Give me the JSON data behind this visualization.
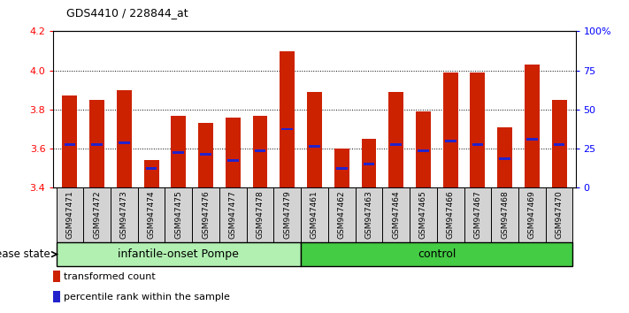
{
  "title": "GDS4410 / 228844_at",
  "samples": [
    "GSM947471",
    "GSM947472",
    "GSM947473",
    "GSM947474",
    "GSM947475",
    "GSM947476",
    "GSM947477",
    "GSM947478",
    "GSM947479",
    "GSM947461",
    "GSM947462",
    "GSM947463",
    "GSM947464",
    "GSM947465",
    "GSM947466",
    "GSM947467",
    "GSM947468",
    "GSM947469",
    "GSM947470"
  ],
  "bar_values": [
    3.87,
    3.85,
    3.9,
    3.54,
    3.77,
    3.73,
    3.76,
    3.77,
    4.1,
    3.89,
    3.6,
    3.65,
    3.89,
    3.79,
    3.99,
    3.99,
    3.71,
    4.03,
    3.85
  ],
  "blue_positions": [
    3.62,
    3.62,
    3.63,
    3.5,
    3.58,
    3.57,
    3.54,
    3.59,
    3.7,
    3.61,
    3.5,
    3.52,
    3.62,
    3.59,
    3.64,
    3.62,
    3.55,
    3.65,
    3.62
  ],
  "groups": [
    {
      "label": "infantile-onset Pompe",
      "start": 0,
      "end": 9,
      "color": "#b2f0b2"
    },
    {
      "label": "control",
      "start": 9,
      "end": 19,
      "color": "#44cc44"
    }
  ],
  "ylim": [
    3.4,
    4.2
  ],
  "yticks": [
    3.4,
    3.6,
    3.8,
    4.0,
    4.2
  ],
  "right_yticks": [
    0,
    25,
    50,
    75,
    100
  ],
  "right_ytick_labels": [
    "0",
    "25",
    "50",
    "75",
    "100%"
  ],
  "bar_color": "#cc2200",
  "blue_color": "#2222cc",
  "bar_width": 0.55,
  "disease_state_label": "disease state",
  "legend_items": [
    {
      "label": "transformed count",
      "color": "#cc2200"
    },
    {
      "label": "percentile rank within the sample",
      "color": "#2222cc"
    }
  ],
  "tick_bg_color": "#d3d3d3",
  "separator_bar": 8,
  "n_pompe": 9,
  "n_total": 19
}
